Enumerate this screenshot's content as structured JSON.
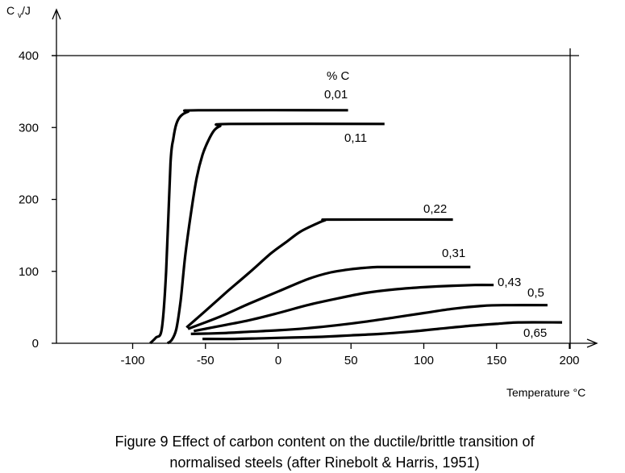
{
  "chart_data": {
    "type": "line",
    "title": "",
    "ylabel_main": "C",
    "ylabel_sub": "v",
    "ylabel_unit": "/J",
    "xlabel": "Temperature °C",
    "legend_title": "% C",
    "xlim": [
      -150,
      220
    ],
    "ylim": [
      0,
      400
    ],
    "xticks": [
      -100,
      -50,
      0,
      50,
      100,
      150,
      200
    ],
    "xtick_labels": [
      "-100",
      "-50",
      "0",
      "50",
      "100",
      "150",
      "200"
    ],
    "yticks": [
      0,
      100,
      200,
      300,
      400
    ],
    "ytick_labels": [
      "0",
      "100",
      "200",
      "300",
      "400"
    ],
    "series": [
      {
        "name": "0,01",
        "x": [
          -88,
          -84,
          -80,
          -77,
          -74,
          -72,
          -70,
          -67,
          -62,
          -55,
          48
        ],
        "y": [
          0,
          8,
          20,
          100,
          250,
          285,
          305,
          316,
          322,
          324,
          324
        ]
      },
      {
        "name": "0,11",
        "x": [
          -76,
          -73,
          -70,
          -67,
          -64,
          -60,
          -56,
          -52,
          -48,
          -44,
          -40,
          -33,
          73
        ],
        "y": [
          0,
          5,
          20,
          60,
          120,
          180,
          230,
          262,
          282,
          296,
          302,
          305,
          305
        ]
      },
      {
        "name": "0,22",
        "x": [
          -63,
          -50,
          -35,
          -20,
          -5,
          5,
          15,
          25,
          32,
          38,
          120
        ],
        "y": [
          22,
          45,
          72,
          98,
          125,
          140,
          155,
          165,
          171,
          172,
          172
        ]
      },
      {
        "name": "0,31",
        "x": [
          -62,
          -40,
          -20,
          0,
          20,
          35,
          50,
          60,
          68,
          75,
          132
        ],
        "y": [
          20,
          37,
          55,
          72,
          89,
          98,
          103,
          105,
          106,
          106,
          106
        ]
      },
      {
        "name": "0,43",
        "x": [
          -58,
          -40,
          -20,
          0,
          20,
          40,
          60,
          80,
          100,
          120,
          135,
          148
        ],
        "y": [
          17,
          24,
          32,
          42,
          53,
          62,
          70,
          75,
          78,
          80,
          81,
          81
        ]
      },
      {
        "name": "0,5",
        "x": [
          -60,
          -40,
          -20,
          0,
          20,
          40,
          60,
          80,
          100,
          120,
          140,
          155,
          185
        ],
        "y": [
          13,
          14,
          16,
          18,
          21,
          25,
          30,
          36,
          42,
          48,
          52,
          53,
          53
        ]
      },
      {
        "name": "0,65",
        "x": [
          -52,
          -30,
          -10,
          10,
          30,
          50,
          70,
          90,
          110,
          130,
          150,
          165,
          195
        ],
        "y": [
          6,
          6,
          7,
          8,
          9,
          11,
          13,
          16,
          20,
          24,
          27,
          29,
          29
        ]
      }
    ]
  },
  "caption": {
    "line1": "Figure 9  Effect of carbon content on the ductile/brittle transition of",
    "line2": "normalised steels (after Rinebolt & Harris, 1951)"
  }
}
